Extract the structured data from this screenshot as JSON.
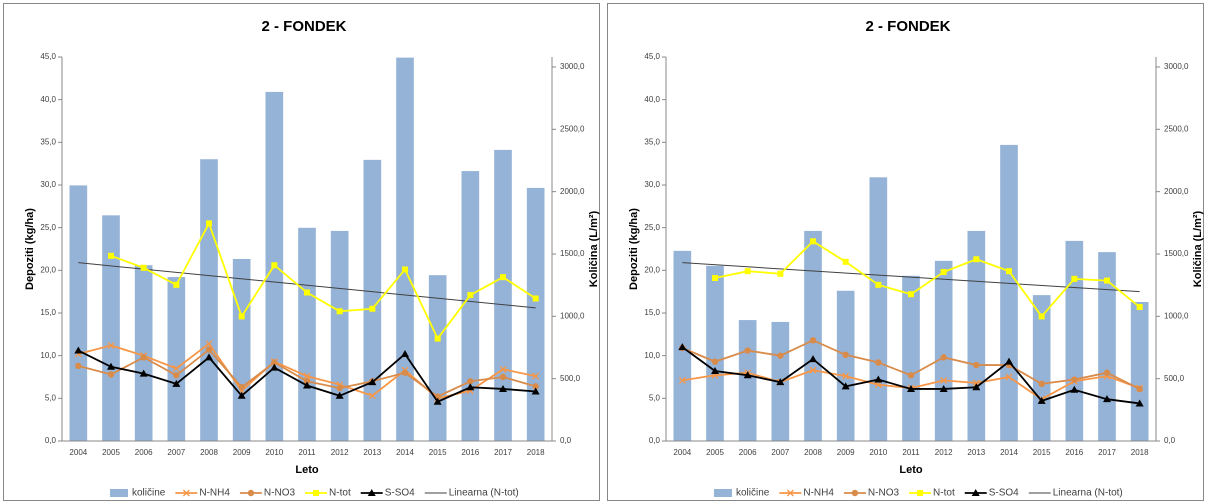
{
  "chart_data": [
    {
      "type": "combo",
      "title": "2 - FONDEK",
      "x_label": "Leto",
      "y_label": "Depoziti (kg/ha)",
      "y2_label": "Količina (L/m²)",
      "categories": [
        "2004",
        "2005",
        "2006",
        "2007",
        "2008",
        "2009",
        "2010",
        "2011",
        "2012",
        "2013",
        "2014",
        "2015",
        "2016",
        "2017",
        "2018"
      ],
      "ylim": [
        0,
        45
      ],
      "yticks": [
        {
          "value": 0,
          "label": "0,0"
        },
        {
          "value": 5,
          "label": "5,0"
        },
        {
          "value": 10,
          "label": "10,0"
        },
        {
          "value": 15,
          "label": "15,0"
        },
        {
          "value": 20,
          "label": "20,0"
        },
        {
          "value": 25,
          "label": "25,0"
        },
        {
          "value": 30,
          "label": "30,0"
        },
        {
          "value": 35,
          "label": "35,0"
        },
        {
          "value": 40,
          "label": "40,0"
        },
        {
          "value": 45,
          "label": "45,0"
        }
      ],
      "y2lim": [
        0,
        3080
      ],
      "y2ticks": [
        {
          "value": 0,
          "label": "0,0"
        },
        {
          "value": 500,
          "label": "500,0"
        },
        {
          "value": 1000,
          "label": "1000,0"
        },
        {
          "value": 1500,
          "label": "1500,0"
        },
        {
          "value": 2000,
          "label": "2000,0"
        },
        {
          "value": 2500,
          "label": "2500,0"
        },
        {
          "value": 3000,
          "label": "3000,0"
        }
      ],
      "series": [
        {
          "name": "količine",
          "kind": "bar",
          "axis": "y2",
          "color": "#95b3d7",
          "values": [
            2050,
            1810,
            1410,
            1315,
            2260,
            1460,
            2800,
            1710,
            1685,
            2255,
            3075,
            1330,
            2165,
            2335,
            2030
          ]
        },
        {
          "name": "N-NH4",
          "kind": "line",
          "marker": "x",
          "color": "#f79646",
          "values": [
            10.2,
            11.2,
            10.0,
            8.5,
            11.4,
            5.9,
            9.3,
            7.6,
            6.6,
            5.3,
            8.3,
            5.0,
            5.9,
            8.4,
            7.6
          ]
        },
        {
          "name": "N-NO3",
          "kind": "line",
          "marker": "circle",
          "color": "#d98b4a",
          "values": [
            8.8,
            7.8,
            9.8,
            7.7,
            10.7,
            6.3,
            9.2,
            7.0,
            6.2,
            7.0,
            8.0,
            5.2,
            7.0,
            7.5,
            6.4
          ]
        },
        {
          "name": "N-tot",
          "kind": "line",
          "marker": "square",
          "color": "#ffff00",
          "values": [
            null,
            21.7,
            20.3,
            18.3,
            25.5,
            14.6,
            20.6,
            17.4,
            15.2,
            15.5,
            20.1,
            12.0,
            17.1,
            19.2,
            16.7
          ]
        },
        {
          "name": "S-SO4",
          "kind": "line",
          "marker": "triangle",
          "color": "#000000",
          "values": [
            10.6,
            8.7,
            7.9,
            6.7,
            9.8,
            5.3,
            8.6,
            6.5,
            5.3,
            6.9,
            10.2,
            4.6,
            6.3,
            6.1,
            5.8
          ]
        }
      ],
      "trend": {
        "name": "Linearna (N-tot)",
        "color": "#404040",
        "start": 20.9,
        "end": 15.6
      }
    },
    {
      "type": "combo",
      "title": "2 - FONDEK",
      "x_label": "Leto",
      "y_label": "Depoziti (kg/ha)",
      "y2_label": "Količina (L/m²)",
      "categories": [
        "2004",
        "2005",
        "2006",
        "2007",
        "2008",
        "2009",
        "2010",
        "2011",
        "2012",
        "2013",
        "2014",
        "2015",
        "2016",
        "2017",
        "2018"
      ],
      "ylim": [
        0,
        45
      ],
      "yticks": [
        {
          "value": 0,
          "label": "0,0"
        },
        {
          "value": 5,
          "label": "5,0"
        },
        {
          "value": 10,
          "label": "10,0"
        },
        {
          "value": 15,
          "label": "15,0"
        },
        {
          "value": 20,
          "label": "20,0"
        },
        {
          "value": 25,
          "label": "25,0"
        },
        {
          "value": 30,
          "label": "30,0"
        },
        {
          "value": 35,
          "label": "35,0"
        },
        {
          "value": 40,
          "label": "40,0"
        },
        {
          "value": 45,
          "label": "45,0"
        }
      ],
      "y2lim": [
        0,
        3080
      ],
      "y2ticks": [
        {
          "value": 0,
          "label": "0,0"
        },
        {
          "value": 500,
          "label": "500,0"
        },
        {
          "value": 1000,
          "label": "1000,0"
        },
        {
          "value": 1500,
          "label": "1500,0"
        },
        {
          "value": 2000,
          "label": "2000,0"
        },
        {
          "value": 2500,
          "label": "2500,0"
        },
        {
          "value": 3000,
          "label": "3000,0"
        }
      ],
      "series": [
        {
          "name": "količine",
          "kind": "bar",
          "axis": "y2",
          "color": "#95b3d7",
          "values": [
            1525,
            1405,
            970,
            955,
            1685,
            1205,
            2115,
            1325,
            1445,
            1685,
            2375,
            1170,
            1605,
            1515,
            1115
          ]
        },
        {
          "name": "N-NH4",
          "kind": "line",
          "marker": "x",
          "color": "#f79646",
          "values": [
            7.1,
            7.7,
            8.0,
            6.9,
            8.3,
            7.6,
            6.6,
            6.2,
            7.1,
            6.8,
            7.5,
            4.9,
            7.0,
            7.6,
            6.2
          ]
        },
        {
          "name": "N-NO3",
          "kind": "line",
          "marker": "circle",
          "color": "#d98b4a",
          "values": [
            10.9,
            9.3,
            10.6,
            10.0,
            11.8,
            10.1,
            9.2,
            7.7,
            9.8,
            8.9,
            8.9,
            6.7,
            7.2,
            8.0,
            6.1
          ]
        },
        {
          "name": "N-tot",
          "kind": "line",
          "marker": "square",
          "color": "#ffff00",
          "values": [
            null,
            19.1,
            19.9,
            19.6,
            23.4,
            21.0,
            18.3,
            17.2,
            19.8,
            21.3,
            19.9,
            14.6,
            19.0,
            18.8,
            15.7
          ]
        },
        {
          "name": "S-SO4",
          "kind": "line",
          "marker": "triangle",
          "color": "#000000",
          "values": [
            11.0,
            8.2,
            7.7,
            6.9,
            9.6,
            6.4,
            7.2,
            6.1,
            6.1,
            6.3,
            9.3,
            4.7,
            6.0,
            4.9,
            4.4
          ]
        }
      ],
      "trend": {
        "name": "Linearna (N-tot)",
        "color": "#404040",
        "start": 20.9,
        "end": 17.5
      }
    }
  ]
}
